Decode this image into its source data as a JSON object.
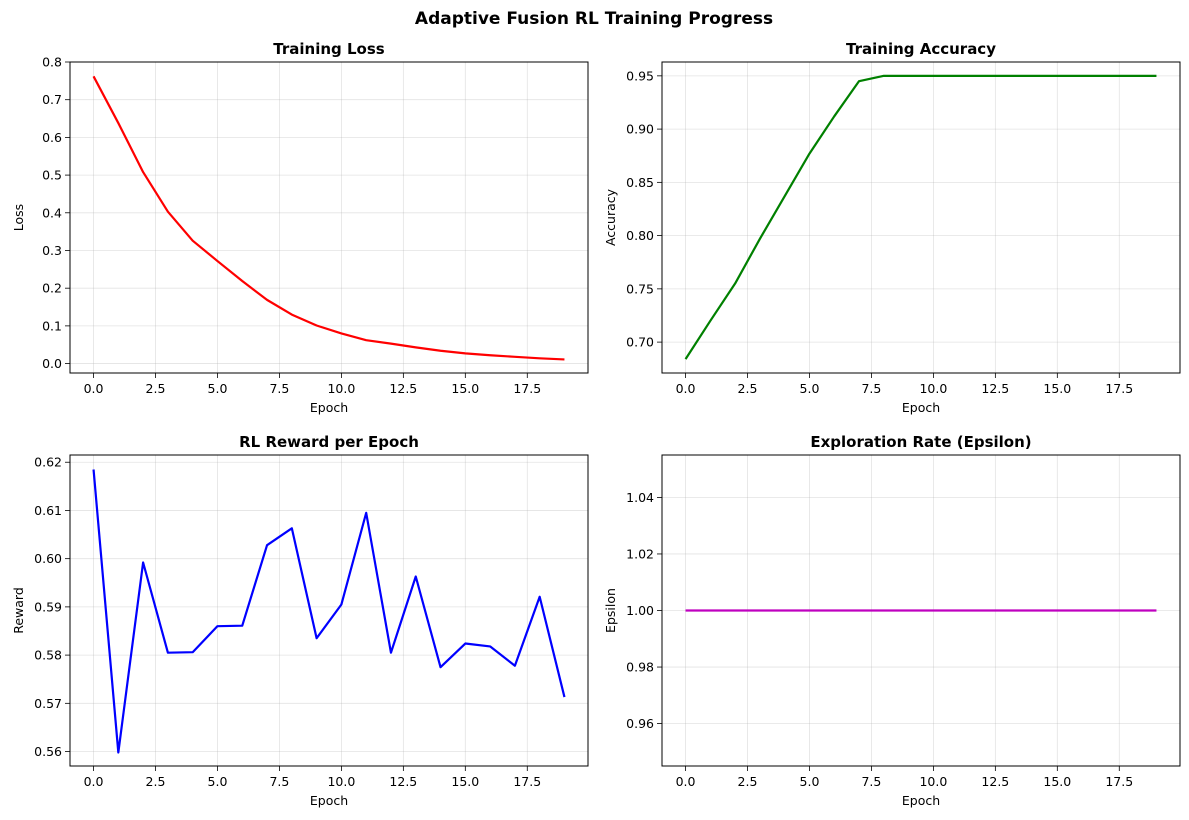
{
  "figure": {
    "suptitle": "Adaptive Fusion RL Training Progress"
  },
  "chart_data": [
    {
      "id": "loss",
      "type": "line",
      "title": "Training Loss",
      "xlabel": "Epoch",
      "ylabel": "Loss",
      "xlim": [
        -0.95,
        19.95
      ],
      "ylim": [
        -0.025,
        0.8
      ],
      "grid": true,
      "xticks": [
        0,
        2.5,
        5,
        7.5,
        10,
        12.5,
        15,
        17.5
      ],
      "xtick_labels": [
        "0.0",
        "2.5",
        "5.0",
        "7.5",
        "10.0",
        "12.5",
        "15.0",
        "17.5"
      ],
      "yticks": [
        0,
        0.1,
        0.2,
        0.3,
        0.4,
        0.5,
        0.6,
        0.7,
        0.8
      ],
      "ytick_labels": [
        "0.0",
        "0.1",
        "0.2",
        "0.3",
        "0.4",
        "0.5",
        "0.6",
        "0.7",
        "0.8"
      ],
      "color": "#ff0000",
      "x": [
        0,
        1,
        2,
        3,
        4,
        5,
        6,
        7,
        8,
        9,
        10,
        11,
        12,
        13,
        14,
        15,
        16,
        17,
        18,
        19
      ],
      "y": [
        0.762,
        0.638,
        0.508,
        0.403,
        0.326,
        0.272,
        0.219,
        0.169,
        0.13,
        0.101,
        0.08,
        0.062,
        0.053,
        0.043,
        0.034,
        0.027,
        0.022,
        0.018,
        0.014,
        0.011
      ]
    },
    {
      "id": "accuracy",
      "type": "line",
      "title": "Training Accuracy",
      "xlabel": "Epoch",
      "ylabel": "Accuracy",
      "xlim": [
        -0.95,
        19.95
      ],
      "ylim": [
        0.671,
        0.963
      ],
      "grid": true,
      "xticks": [
        0,
        2.5,
        5,
        7.5,
        10,
        12.5,
        15,
        17.5
      ],
      "xtick_labels": [
        "0.0",
        "2.5",
        "5.0",
        "7.5",
        "10.0",
        "12.5",
        "15.0",
        "17.5"
      ],
      "yticks": [
        0.7,
        0.75,
        0.8,
        0.85,
        0.9,
        0.95
      ],
      "ytick_labels": [
        "0.70",
        "0.75",
        "0.80",
        "0.85",
        "0.90",
        "0.95"
      ],
      "color": "#008000",
      "x": [
        0,
        1,
        2,
        3,
        4,
        5,
        6,
        7,
        8,
        9,
        10,
        11,
        12,
        13,
        14,
        15,
        16,
        17,
        18,
        19
      ],
      "y": [
        0.684,
        0.72,
        0.755,
        0.797,
        0.837,
        0.877,
        0.912,
        0.945,
        0.95,
        0.95,
        0.95,
        0.95,
        0.95,
        0.95,
        0.95,
        0.95,
        0.95,
        0.95,
        0.95,
        0.95
      ]
    },
    {
      "id": "reward",
      "type": "line",
      "title": "RL Reward per Epoch",
      "xlabel": "Epoch",
      "ylabel": "Reward",
      "xlim": [
        -0.95,
        19.95
      ],
      "ylim": [
        0.557,
        0.6215
      ],
      "grid": true,
      "xticks": [
        0,
        2.5,
        5,
        7.5,
        10,
        12.5,
        15,
        17.5
      ],
      "xtick_labels": [
        "0.0",
        "2.5",
        "5.0",
        "7.5",
        "10.0",
        "12.5",
        "15.0",
        "17.5"
      ],
      "yticks": [
        0.56,
        0.57,
        0.58,
        0.59,
        0.6,
        0.61,
        0.62
      ],
      "ytick_labels": [
        "0.56",
        "0.57",
        "0.58",
        "0.59",
        "0.60",
        "0.61",
        "0.62"
      ],
      "color": "#0000ff",
      "x": [
        0,
        1,
        2,
        3,
        4,
        5,
        6,
        7,
        8,
        9,
        10,
        11,
        12,
        13,
        14,
        15,
        16,
        17,
        18,
        19
      ],
      "y": [
        0.6185,
        0.5598,
        0.5992,
        0.5805,
        0.5806,
        0.586,
        0.5861,
        0.6028,
        0.6063,
        0.5835,
        0.5905,
        0.6095,
        0.5805,
        0.5963,
        0.5775,
        0.5824,
        0.5818,
        0.5778,
        0.5921,
        0.5713
      ]
    },
    {
      "id": "epsilon",
      "type": "line",
      "title": "Exploration Rate (Epsilon)",
      "xlabel": "Epoch",
      "ylabel": "Epsilon",
      "xlim": [
        -0.95,
        19.95
      ],
      "ylim": [
        0.945,
        1.055
      ],
      "grid": true,
      "xticks": [
        0,
        2.5,
        5,
        7.5,
        10,
        12.5,
        15,
        17.5
      ],
      "xtick_labels": [
        "0.0",
        "2.5",
        "5.0",
        "7.5",
        "10.0",
        "12.5",
        "15.0",
        "17.5"
      ],
      "yticks": [
        0.96,
        0.98,
        1.0,
        1.02,
        1.04
      ],
      "ytick_labels": [
        "0.96",
        "0.98",
        "1.00",
        "1.02",
        "1.04"
      ],
      "color": "#bf00bf",
      "x": [
        0,
        1,
        2,
        3,
        4,
        5,
        6,
        7,
        8,
        9,
        10,
        11,
        12,
        13,
        14,
        15,
        16,
        17,
        18,
        19
      ],
      "y": [
        1.0,
        1.0,
        1.0,
        1.0,
        1.0,
        1.0,
        1.0,
        1.0,
        1.0,
        1.0,
        1.0,
        1.0,
        1.0,
        1.0,
        1.0,
        1.0,
        1.0,
        1.0,
        1.0,
        1.0
      ]
    }
  ]
}
